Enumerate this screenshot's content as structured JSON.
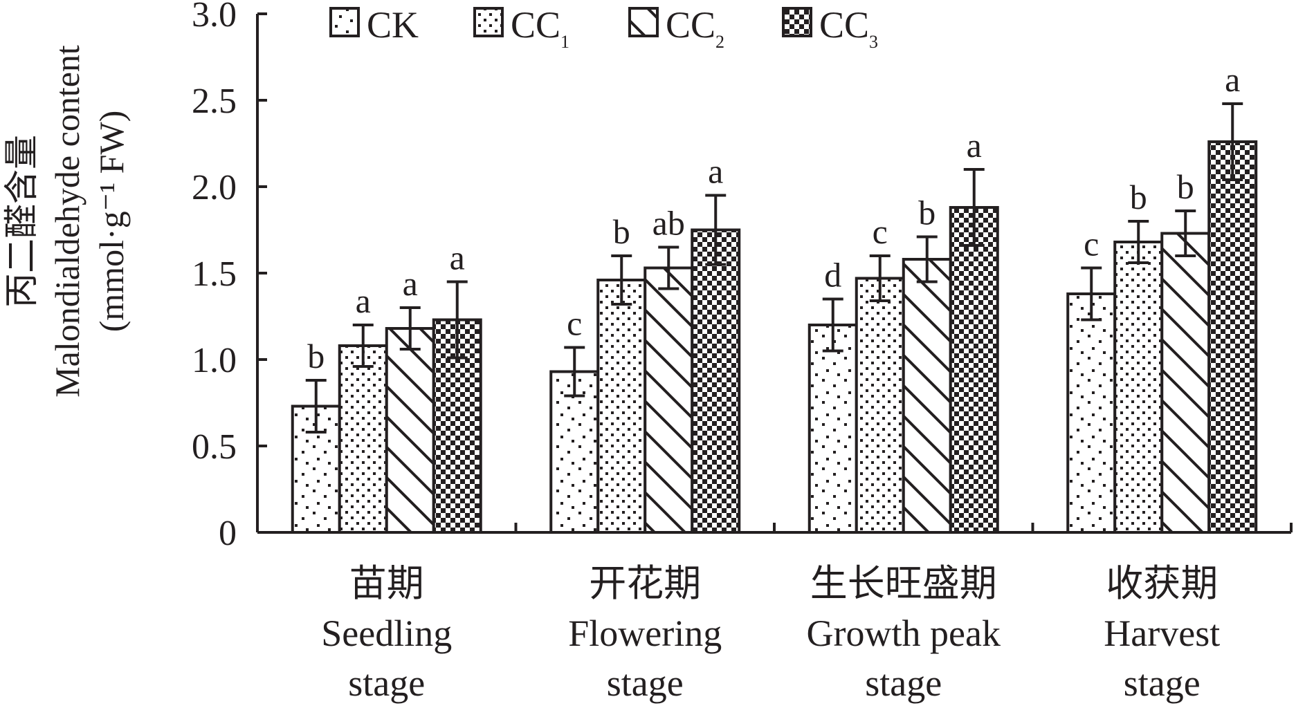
{
  "chart_data": {
    "type": "bar",
    "ylabel_cn": "丙二醛含量",
    "ylabel_en": "Malondialdehyde content",
    "ylabel_unit": "(mmol·g⁻¹ FW)",
    "ylim": [
      0,
      3.0
    ],
    "yticks": [
      0,
      0.5,
      1.0,
      1.5,
      2.0,
      2.5,
      3.0
    ],
    "ytick_labels": [
      "0",
      "0.5",
      "1.0",
      "1.5",
      "2.0",
      "2.5",
      "3.0"
    ],
    "categories": [
      {
        "cn": "苗期",
        "en1": "Seedling",
        "en2": "stage"
      },
      {
        "cn": "开花期",
        "en1": "Flowering",
        "en2": "stage"
      },
      {
        "cn": "生长旺盛期",
        "en1": "Growth peak",
        "en2": "stage"
      },
      {
        "cn": "收获期",
        "en1": "Harvest",
        "en2": "stage"
      }
    ],
    "series": [
      {
        "name": "CK",
        "name_base": "CK",
        "name_sub": "",
        "pattern": "ck",
        "values": [
          0.73,
          0.93,
          1.2,
          1.38
        ],
        "errors": [
          0.15,
          0.14,
          0.15,
          0.15
        ],
        "sig": [
          "b",
          "c",
          "d",
          "c"
        ]
      },
      {
        "name": "CC1",
        "name_base": "CC",
        "name_sub": "1",
        "pattern": "cc1",
        "values": [
          1.08,
          1.46,
          1.47,
          1.68
        ],
        "errors": [
          0.12,
          0.14,
          0.13,
          0.12
        ],
        "sig": [
          "a",
          "b",
          "c",
          "b"
        ]
      },
      {
        "name": "CC2",
        "name_base": "CC",
        "name_sub": "2",
        "pattern": "cc2",
        "values": [
          1.18,
          1.53,
          1.58,
          1.73
        ],
        "errors": [
          0.12,
          0.12,
          0.13,
          0.13
        ],
        "sig": [
          "a",
          "ab",
          "b",
          "b"
        ]
      },
      {
        "name": "CC3",
        "name_base": "CC",
        "name_sub": "3",
        "pattern": "cc3",
        "values": [
          1.23,
          1.75,
          1.88,
          2.26
        ],
        "errors": [
          0.22,
          0.2,
          0.22,
          0.22
        ],
        "sig": [
          "a",
          "a",
          "a",
          "a"
        ]
      }
    ],
    "legend_position": "top",
    "grid": false,
    "colors": {
      "ink": "#231f20",
      "fill": "#ffffff"
    }
  }
}
